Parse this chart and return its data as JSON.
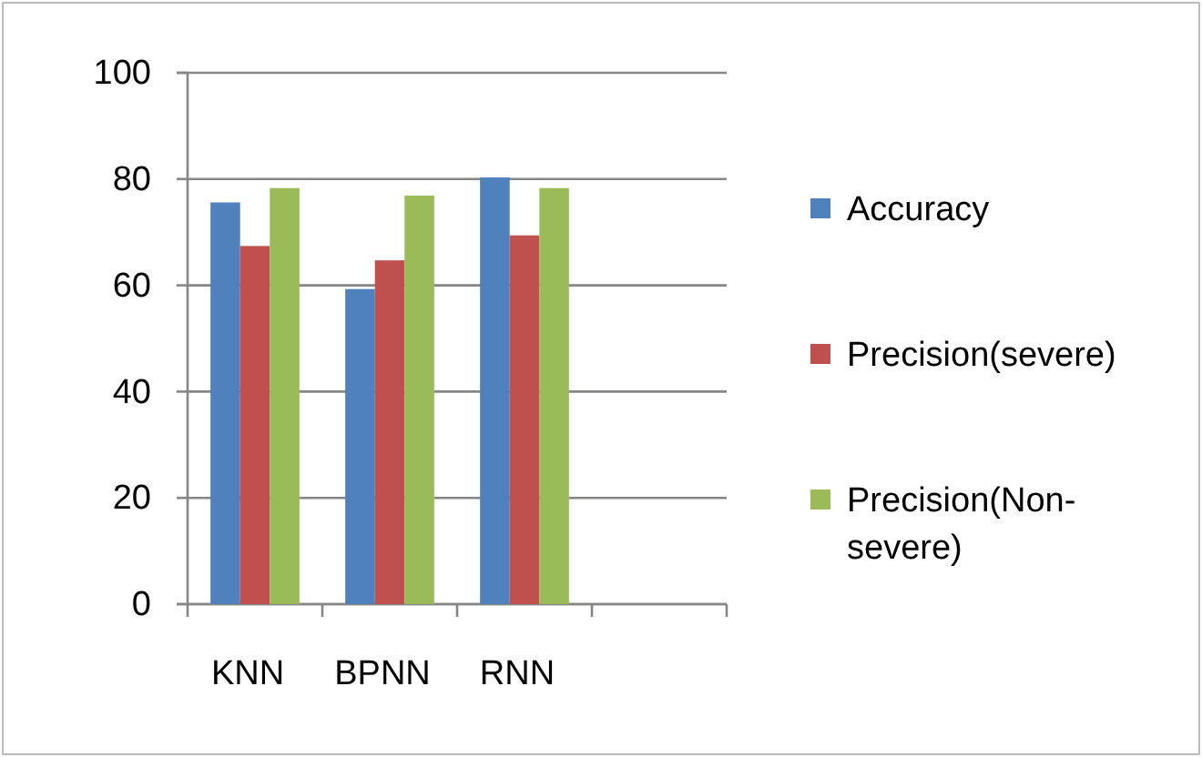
{
  "chart_data": {
    "type": "bar",
    "categories": [
      "KNN",
      "BPNN",
      "RNN",
      null
    ],
    "series": [
      {
        "name": "Accuracy",
        "color": "#4f81bd",
        "values": [
          75.6,
          59.3,
          80.3,
          null
        ]
      },
      {
        "name": "Precision(severe)",
        "color": "#c0504d",
        "values": [
          67.4,
          64.7,
          69.4,
          null
        ]
      },
      {
        "name": "Precision(Non-severe)",
        "color": "#9bbb59",
        "values": [
          78.3,
          76.9,
          78.3,
          null
        ]
      }
    ],
    "ylim": [
      0,
      100
    ],
    "yticks": [
      0,
      20,
      40,
      60,
      80,
      100
    ],
    "grid": "y",
    "legend": "right"
  }
}
